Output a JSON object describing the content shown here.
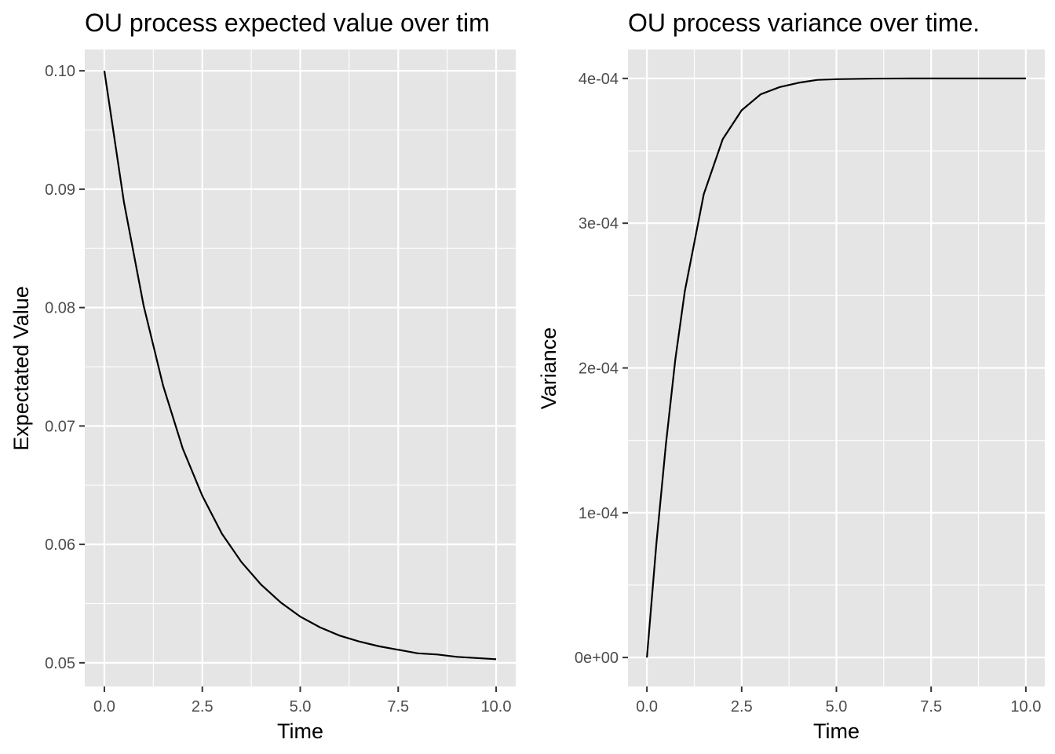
{
  "chart_data": [
    {
      "type": "line",
      "title": "OU process expected value over tim",
      "xlabel": "Time",
      "ylabel": "Expectated Value",
      "xlim": [
        -0.5,
        10.5
      ],
      "ylim": [
        0.048,
        0.1018
      ],
      "x_ticks": [
        0,
        2.5,
        5,
        7.5,
        10
      ],
      "x_tick_labels": [
        "0.0",
        "2.5",
        "5.0",
        "7.5",
        "10.0"
      ],
      "y_ticks": [
        0.05,
        0.06,
        0.07,
        0.08,
        0.09,
        0.1
      ],
      "y_tick_labels": [
        "0.05",
        "0.06",
        "0.07",
        "0.08",
        "0.09",
        "0.10"
      ],
      "grid": true,
      "series": [
        {
          "x": [
            0,
            0.5,
            1,
            1.5,
            2,
            2.5,
            3,
            3.5,
            4,
            4.5,
            5,
            5.5,
            6,
            6.5,
            7,
            7.5,
            8,
            8.5,
            9,
            9.5,
            10
          ],
          "values": [
            0.1,
            0.0889,
            0.0802,
            0.0734,
            0.0681,
            0.0641,
            0.0609,
            0.0585,
            0.0566,
            0.0551,
            0.0539,
            0.053,
            0.0523,
            0.0518,
            0.0514,
            0.0511,
            0.0508,
            0.0507,
            0.0505,
            0.0504,
            0.0503
          ]
        }
      ]
    },
    {
      "type": "line",
      "title": "OU process variance over time.",
      "xlabel": "Time",
      "ylabel": "Variance",
      "xlim": [
        -0.5,
        10.5
      ],
      "ylim": [
        -2e-05,
        0.00042
      ],
      "x_ticks": [
        0,
        2.5,
        5,
        7.5,
        10
      ],
      "x_tick_labels": [
        "0.0",
        "2.5",
        "5.0",
        "7.5",
        "10.0"
      ],
      "y_ticks": [
        0,
        0.0001,
        0.0002,
        0.0003,
        0.0004
      ],
      "y_tick_labels": [
        "0e+00",
        "1e-04",
        "2e-04",
        "3e-04",
        "4e-04"
      ],
      "grid": true,
      "series": [
        {
          "x": [
            0,
            0.25,
            0.5,
            0.75,
            1,
            1.5,
            2,
            2.5,
            3,
            3.5,
            4,
            4.5,
            5,
            6,
            7,
            8,
            9,
            10
          ],
          "values": [
            0,
            7.87e-05,
            0.000147,
            0.000206,
            0.000253,
            0.00032,
            0.000358,
            0.000378,
            0.000389,
            0.000394,
            0.000397,
            0.000399,
            0.0003995,
            0.0003999,
            0.0004,
            0.0004,
            0.0004,
            0.0004
          ]
        }
      ]
    }
  ]
}
